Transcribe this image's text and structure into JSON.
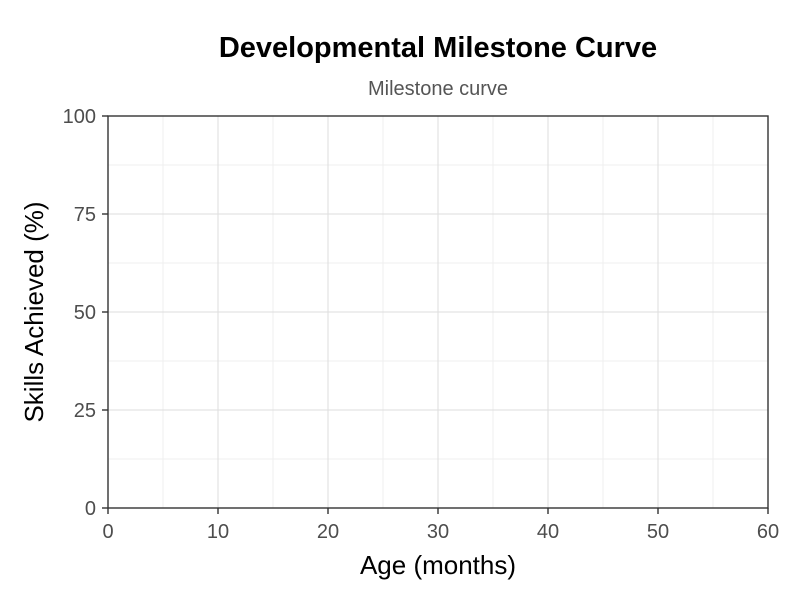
{
  "chart_data": {
    "type": "line",
    "title": "Developmental Milestone Curve",
    "subtitle": "Milestone curve",
    "xlabel": "Age (months)",
    "ylabel": "Skills Achieved (%)",
    "xlim": [
      0,
      60
    ],
    "ylim": [
      0,
      100
    ],
    "x_ticks": [
      0,
      10,
      20,
      30,
      40,
      50,
      60
    ],
    "y_ticks": [
      0,
      25,
      50,
      75,
      100
    ],
    "x_minor_ticks": [
      5,
      15,
      25,
      35,
      45,
      55
    ],
    "y_minor_ticks": [
      12.5,
      37.5,
      62.5,
      87.5
    ],
    "grid": true,
    "series": []
  }
}
